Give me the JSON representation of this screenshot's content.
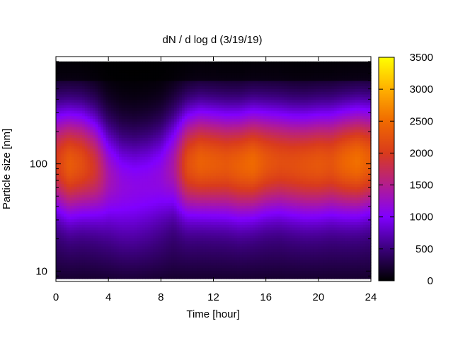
{
  "chart_data": {
    "type": "heatmap",
    "title": "dN / d log d (3/19/19)",
    "xlabel": "Time [hour]",
    "ylabel": "Particle size [nm]",
    "x_ticks": [
      "0",
      "4",
      "8",
      "12",
      "16",
      "20",
      "24"
    ],
    "x_tick_values": [
      0,
      4,
      8,
      12,
      16,
      20,
      24
    ],
    "y_ticks": [
      "10",
      "100"
    ],
    "y_tick_values": [
      10,
      100
    ],
    "y_scale": "log",
    "xlim": [
      0,
      24
    ],
    "ylim": [
      8,
      1000
    ],
    "data_y_range": [
      8.5,
      900
    ],
    "colorbar": {
      "ticks": [
        "0",
        "500",
        "1000",
        "1500",
        "2000",
        "2500",
        "3000",
        "3500"
      ],
      "tick_values": [
        0,
        500,
        1000,
        1500,
        2000,
        2500,
        3000,
        3500
      ],
      "range": [
        0,
        3500
      ],
      "colormap": [
        "#000000",
        "#3a007a",
        "#8000ff",
        "#b31d8e",
        "#d93b1c",
        "#f06a00",
        "#ffb000",
        "#ffff00"
      ]
    },
    "peak_diameter_nm": [
      105,
      100,
      100,
      92,
      75,
      64,
      62,
      66,
      75,
      94,
      100,
      104,
      102,
      100,
      98,
      102,
      104,
      104,
      100,
      98,
      100,
      102,
      104,
      106,
      108
    ],
    "peak_concentration": [
      2000,
      2350,
      2200,
      1900,
      1350,
      1150,
      1100,
      1100,
      1150,
      1400,
      2200,
      2400,
      2350,
      2300,
      2400,
      2500,
      2300,
      2200,
      2200,
      2250,
      2300,
      2250,
      2450,
      2550,
      2350
    ],
    "grid": false,
    "legend": "colorbar-right"
  }
}
